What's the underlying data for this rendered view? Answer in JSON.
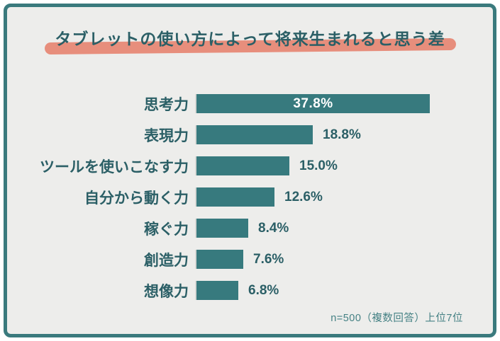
{
  "title": "タブレットの使い方によって将来生まれると思う差",
  "footnote": "n=500（複数回答）上位7位",
  "colors": {
    "bar": "#377a7e",
    "frame_border": "#3a7a7d",
    "background": "#ededeb",
    "title_text": "#2b5f66",
    "label_text": "#2b5f66",
    "value_inside": "#ffffff",
    "highlight": "#e78e7c",
    "footnote_text": "#458184",
    "axis_line": "#d8d8d5"
  },
  "chart_data": {
    "type": "bar",
    "orientation": "horizontal",
    "title": "タブレットの使い方によって将来生まれると思う差",
    "xlabel": "",
    "ylabel": "",
    "xlim": [
      0,
      40
    ],
    "grid": false,
    "legend": false,
    "categories": [
      "思考力",
      "表現力",
      "ツールを使いこなす力",
      "自分から動く力",
      "稼ぐ力",
      "創造力",
      "想像力"
    ],
    "values": [
      37.8,
      18.8,
      15.0,
      12.6,
      8.4,
      7.6,
      6.8
    ],
    "value_labels": [
      "37.8%",
      "18.8%",
      "15.0%",
      "12.6%",
      "8.4%",
      "7.6%",
      "6.8%"
    ],
    "value_label_position": [
      "inside",
      "outside",
      "outside",
      "outside",
      "outside",
      "outside",
      "outside"
    ],
    "note": "n=500（複数回答）上位7位"
  }
}
